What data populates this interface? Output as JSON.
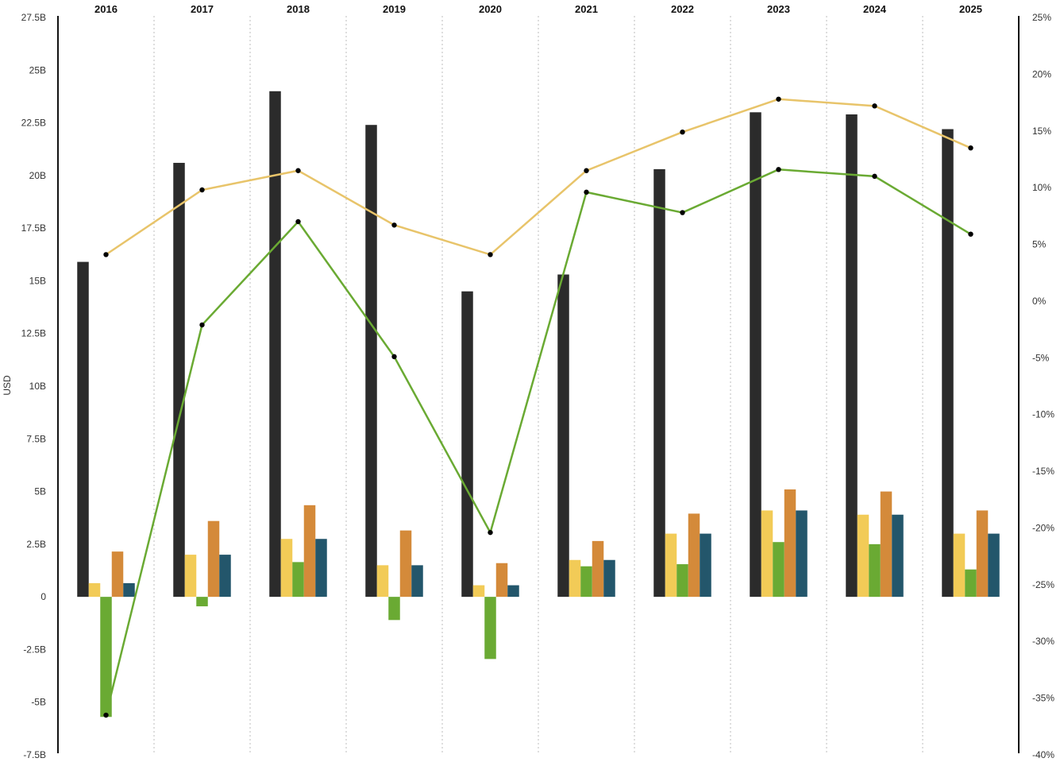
{
  "chart_data": {
    "type": "bar",
    "categories": [
      "2016",
      "2017",
      "2018",
      "2019",
      "2020",
      "2021",
      "2022",
      "2023",
      "2024",
      "2025"
    ],
    "ylabel": "USD",
    "ylim": [
      -7.5,
      27.5
    ],
    "y_ticks": [
      {
        "value": 27.5,
        "label": "27.5B"
      },
      {
        "value": 25,
        "label": "25B"
      },
      {
        "value": 22.5,
        "label": "22.5B"
      },
      {
        "value": 20,
        "label": "20B"
      },
      {
        "value": 17.5,
        "label": "17.5B"
      },
      {
        "value": 15,
        "label": "15B"
      },
      {
        "value": 12.5,
        "label": "12.5B"
      },
      {
        "value": 10,
        "label": "10B"
      },
      {
        "value": 7.5,
        "label": "7.5B"
      },
      {
        "value": 5,
        "label": "5B"
      },
      {
        "value": 2.5,
        "label": "2.5B"
      },
      {
        "value": 0,
        "label": "0"
      },
      {
        "value": -2.5,
        "label": "-2.5B"
      },
      {
        "value": -5,
        "label": "-5B"
      },
      {
        "value": -7.5,
        "label": "-7.5B"
      }
    ],
    "y2lim": [
      -40,
      25
    ],
    "y2_ticks": [
      {
        "value": 25,
        "label": "25%"
      },
      {
        "value": 20,
        "label": "20%"
      },
      {
        "value": 15,
        "label": "15%"
      },
      {
        "value": 10,
        "label": "10%"
      },
      {
        "value": 5,
        "label": "5%"
      },
      {
        "value": 0,
        "label": "0%"
      },
      {
        "value": -5,
        "label": "-5%"
      },
      {
        "value": -10,
        "label": "-10%"
      },
      {
        "value": -15,
        "label": "-15%"
      },
      {
        "value": -20,
        "label": "-20%"
      },
      {
        "value": -25,
        "label": "-25%"
      },
      {
        "value": -30,
        "label": "-30%"
      },
      {
        "value": -35,
        "label": "-35%"
      },
      {
        "value": -40,
        "label": "-40%"
      }
    ],
    "series": [
      {
        "type": "bar",
        "color": "#2b2b2b",
        "values": [
          15.9,
          20.6,
          24.0,
          22.4,
          14.5,
          15.3,
          20.3,
          23.0,
          22.9,
          22.2
        ]
      },
      {
        "type": "bar",
        "color": "#f2cb57",
        "values": [
          0.65,
          2.0,
          2.75,
          1.5,
          0.55,
          1.75,
          3.0,
          4.1,
          3.9,
          3.0
        ]
      },
      {
        "type": "bar",
        "color": "#6aaa33",
        "values": [
          -5.7,
          -0.45,
          1.65,
          -1.1,
          -2.95,
          1.45,
          1.55,
          2.6,
          2.5,
          1.3
        ]
      },
      {
        "type": "bar",
        "color": "#d48a3a",
        "values": [
          2.15,
          3.6,
          4.35,
          3.15,
          1.6,
          2.65,
          3.95,
          5.1,
          5.0,
          4.1
        ]
      },
      {
        "type": "bar",
        "color": "#23566b",
        "values": [
          0.65,
          2.0,
          2.75,
          1.5,
          0.55,
          1.75,
          3.0,
          4.1,
          3.9,
          3.0
        ]
      },
      {
        "type": "line",
        "axis": "y2",
        "color": "#e8c46a",
        "values": [
          4.1,
          9.8,
          11.5,
          6.7,
          4.1,
          11.5,
          14.9,
          17.8,
          17.2,
          13.5
        ]
      },
      {
        "type": "line",
        "axis": "y2",
        "color": "#6aaa33",
        "values": [
          -36.5,
          -2.1,
          7.0,
          -4.9,
          -20.4,
          9.6,
          7.8,
          11.6,
          11.0,
          5.9
        ]
      }
    ],
    "grid": "vertical-dotted",
    "legend": "none"
  }
}
